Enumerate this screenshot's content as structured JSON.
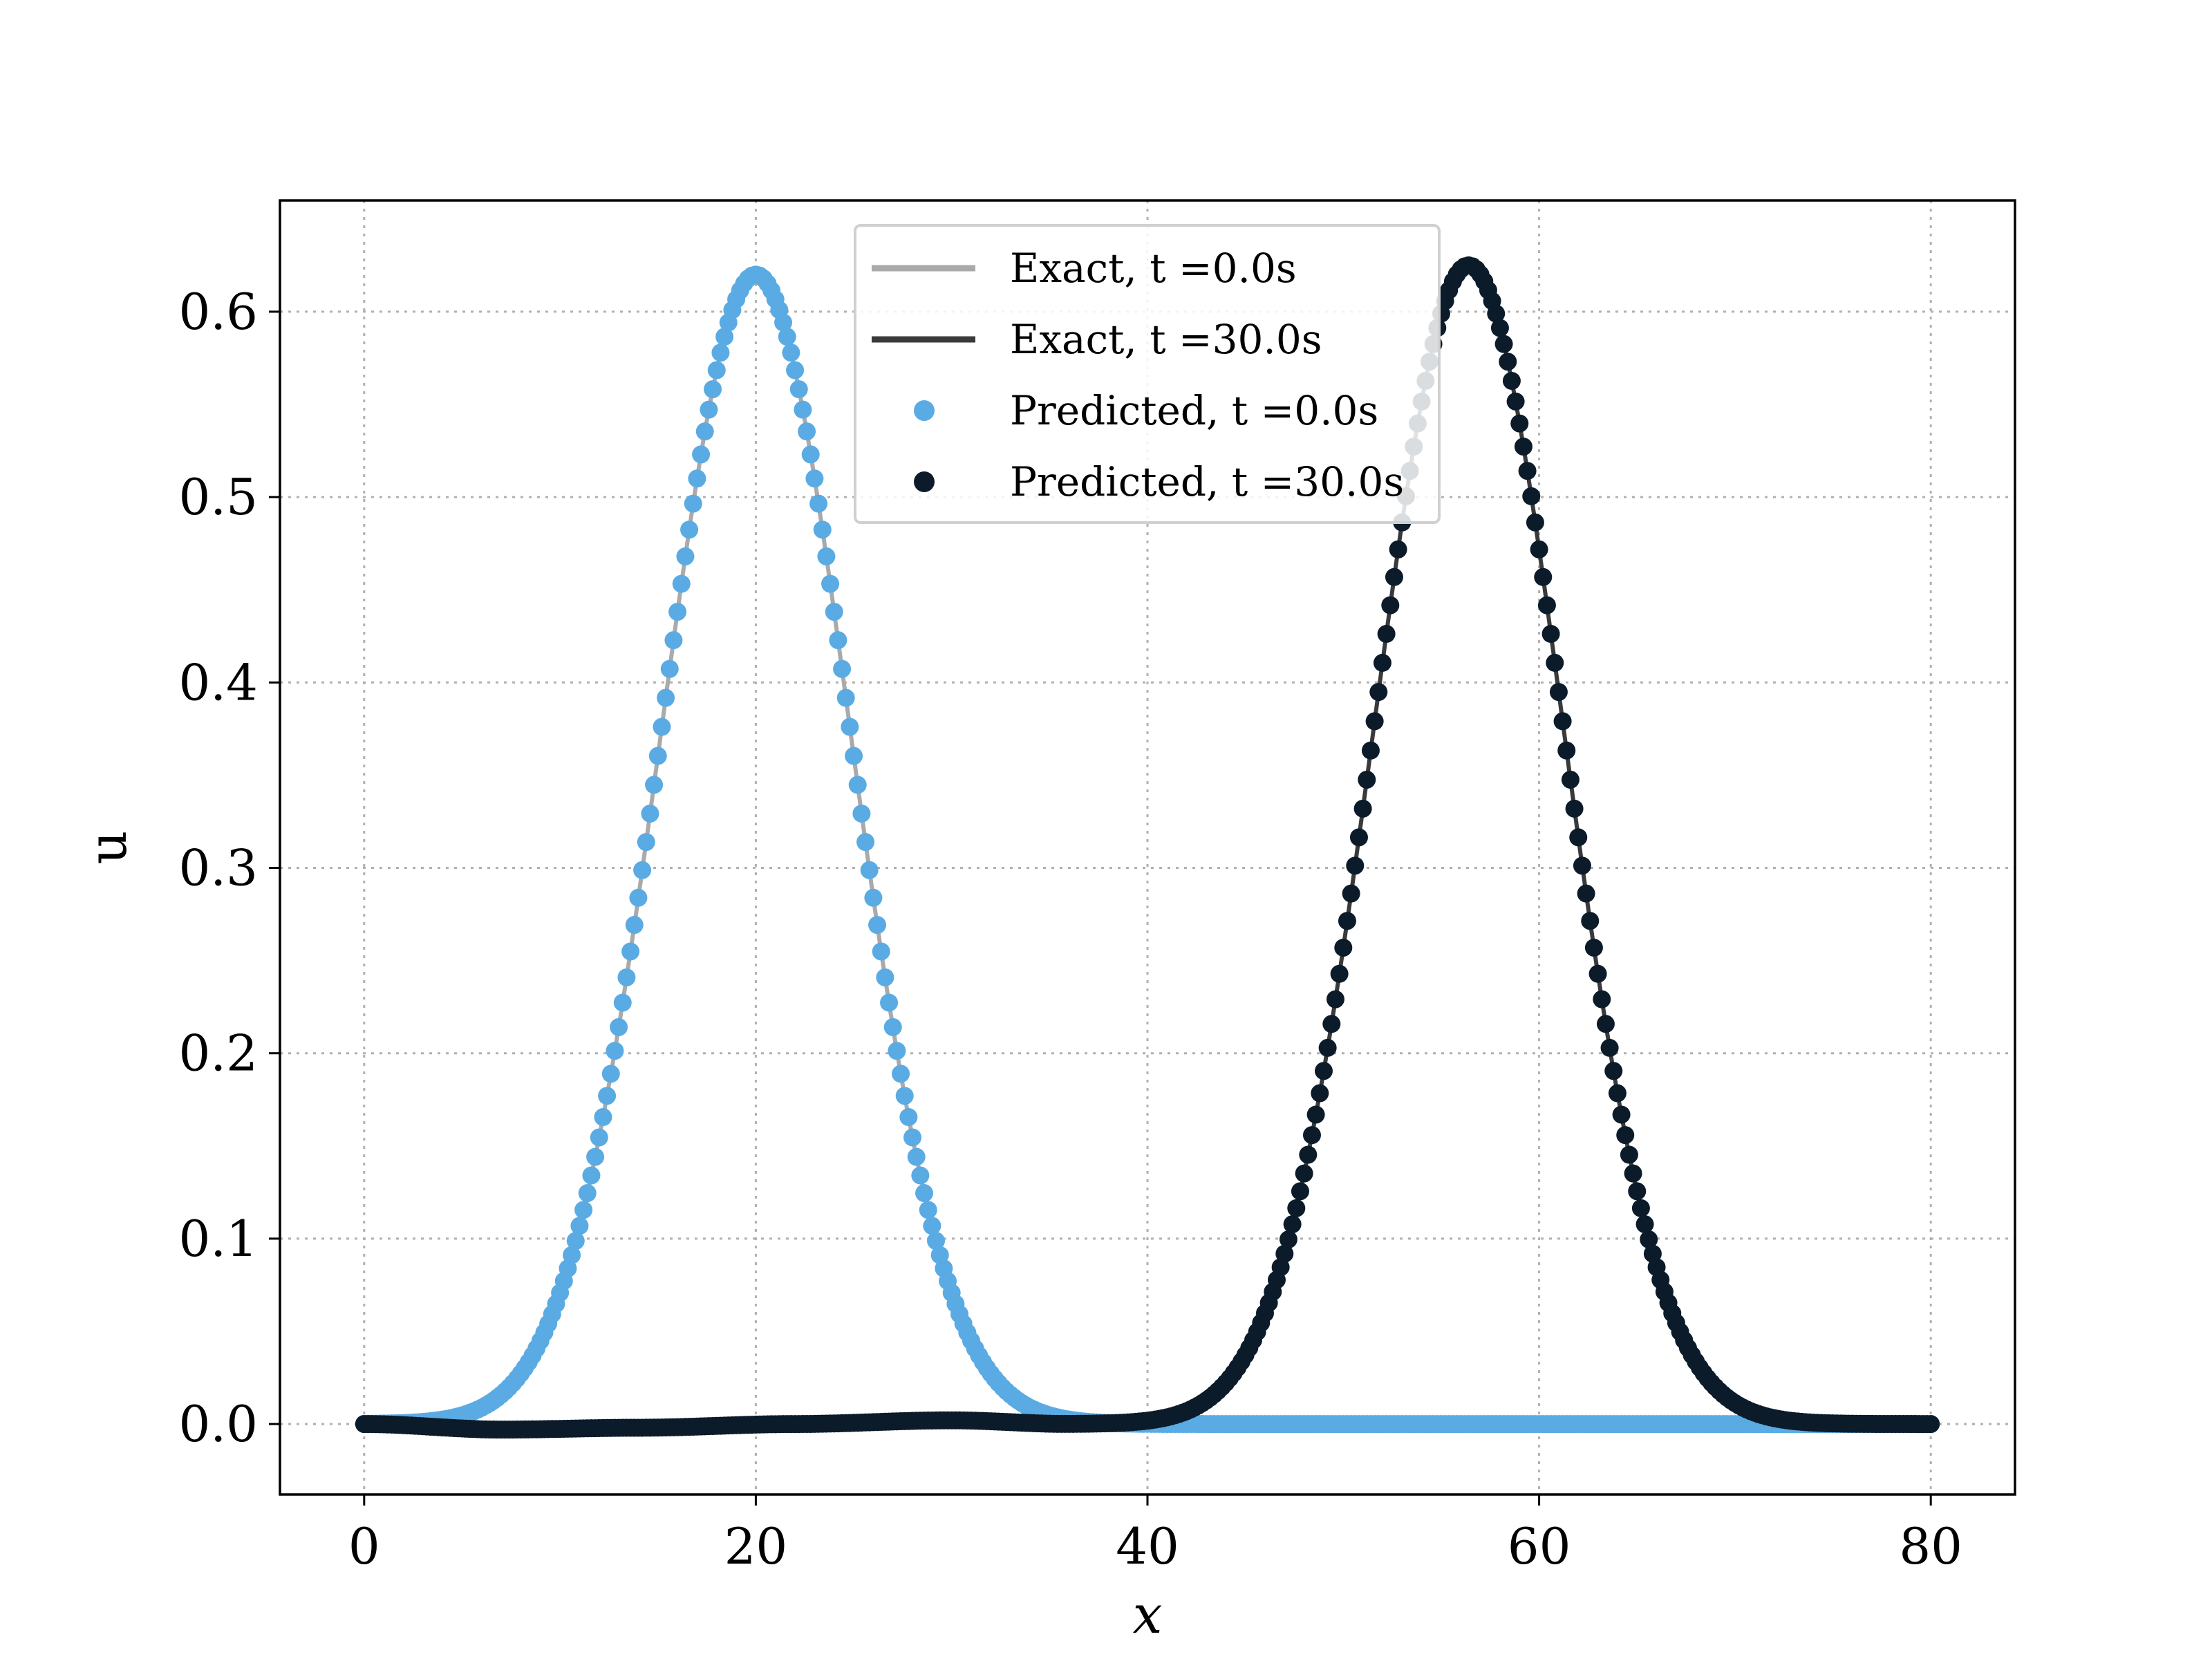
{
  "chart_data": {
    "type": "scatter",
    "title": "",
    "xlabel": "x",
    "ylabel": "u",
    "xlim": [
      -4.3,
      84.3
    ],
    "ylim": [
      -0.038,
      0.66
    ],
    "xticks": [
      0,
      20,
      40,
      60,
      80
    ],
    "yticks": [
      0.0,
      0.1,
      0.2,
      0.3,
      0.4,
      0.5,
      0.6
    ],
    "xtick_labels": [
      "0",
      "20",
      "40",
      "60",
      "80"
    ],
    "ytick_labels": [
      "0.0",
      "0.1",
      "0.2",
      "0.3",
      "0.4",
      "0.5",
      "0.6"
    ],
    "grid": true,
    "legend": {
      "placement": "top-center",
      "entries": [
        {
          "label": "Exact, t =0.0s",
          "marker": "line",
          "color": "#aaaaaa"
        },
        {
          "label": "Exact, t =30.0s",
          "marker": "line",
          "color": "#3a3a3a"
        },
        {
          "label": "Predicted, t =0.0s",
          "marker": "dot",
          "color": "#5aabe3"
        },
        {
          "label": "Predicted, t =30.0s",
          "marker": "dot",
          "color": "#0b1b2a"
        }
      ]
    },
    "series": [
      {
        "name": "Exact, t =0.0s",
        "kind": "line",
        "color": "#aaaaaa",
        "shape": "gaussian",
        "x_range": [
          0,
          80
        ],
        "center": 20.0,
        "peak": 0.62,
        "width": 4.8
      },
      {
        "name": "Exact, t =30.0s",
        "kind": "line",
        "color": "#3a3a3a",
        "shape": "gaussian",
        "x_range": [
          0,
          80
        ],
        "center": 56.4,
        "peak": 0.625,
        "width": 4.8
      },
      {
        "name": "Predicted, t =0.0s",
        "kind": "scatter",
        "color": "#5aabe3",
        "x_range": [
          0,
          80
        ],
        "points": 401,
        "center": 20.0,
        "peak": 0.62,
        "width": 4.8
      },
      {
        "name": "Predicted, t =30.0s",
        "kind": "scatter",
        "color": "#0b1b2a",
        "x_range": [
          0,
          80
        ],
        "points": 401,
        "center": 56.4,
        "peak": 0.625,
        "width": 4.8,
        "baseline_offset": [
          [
            0,
            0.0
          ],
          [
            7,
            -0.003
          ],
          [
            14,
            -0.002
          ],
          [
            22,
            0.0
          ],
          [
            30,
            0.002
          ],
          [
            36,
            0.0
          ],
          [
            40,
            0.0
          ],
          [
            80,
            0.0
          ]
        ]
      }
    ]
  }
}
